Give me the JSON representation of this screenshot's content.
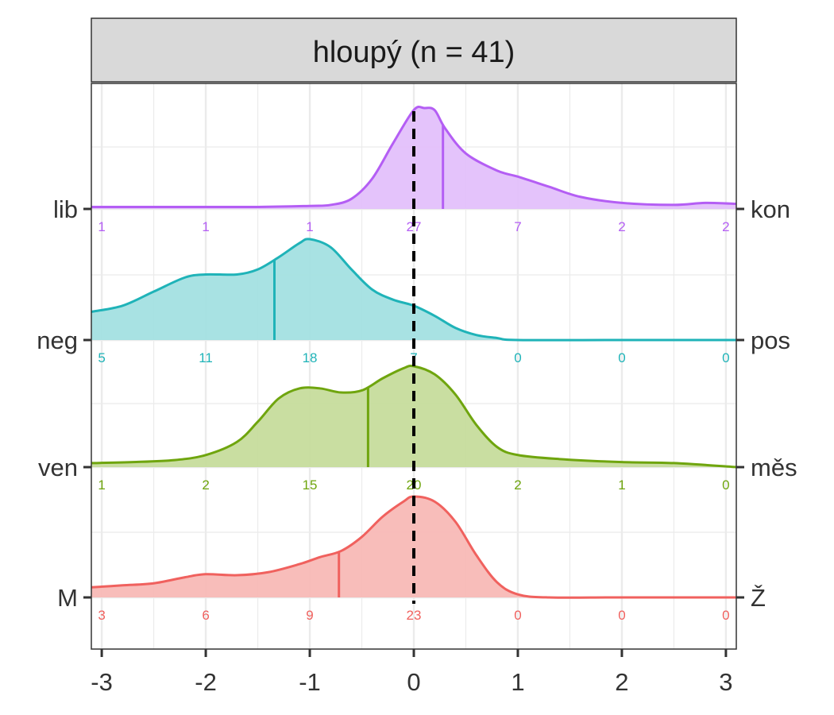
{
  "chart_data": {
    "type": "ridgeline-density",
    "title": "hloupý (n = 41)",
    "xlim": [
      -3.1,
      3.1
    ],
    "x_ticks": [
      -3,
      -2,
      -1,
      0,
      1,
      2,
      3
    ],
    "x_tick_labels": [
      "-3",
      "-2",
      "-1",
      "0",
      "1",
      "2",
      "3"
    ],
    "count_positions": [
      -3,
      -2,
      -1,
      0,
      1,
      2,
      3
    ],
    "reference_line_x": 0,
    "grid": true,
    "series": [
      {
        "left_label": "lib",
        "right_label": "kon",
        "color": "#B45EF4",
        "fill": "#E3C0FB",
        "mean": 0.28,
        "counts": [
          1,
          1,
          1,
          27,
          7,
          2,
          2
        ],
        "count_labels": [
          "1",
          "1",
          "1",
          "27",
          "7",
          "2",
          "2"
        ],
        "density": [
          [
            -3.1,
            0.02
          ],
          [
            -2.5,
            0.02
          ],
          [
            -2.0,
            0.02
          ],
          [
            -1.5,
            0.02
          ],
          [
            -1.0,
            0.03
          ],
          [
            -0.8,
            0.04
          ],
          [
            -0.6,
            0.1
          ],
          [
            -0.4,
            0.3
          ],
          [
            -0.2,
            0.65
          ],
          [
            0.0,
            0.98
          ],
          [
            0.1,
            1.0
          ],
          [
            0.2,
            0.98
          ],
          [
            0.3,
            0.8
          ],
          [
            0.5,
            0.55
          ],
          [
            0.8,
            0.38
          ],
          [
            1.0,
            0.32
          ],
          [
            1.3,
            0.22
          ],
          [
            1.6,
            0.12
          ],
          [
            2.0,
            0.06
          ],
          [
            2.5,
            0.04
          ],
          [
            2.8,
            0.06
          ],
          [
            3.1,
            0.05
          ]
        ]
      },
      {
        "left_label": "neg",
        "right_label": "pos",
        "color": "#1FB3B8",
        "fill": "#A3E0E1",
        "mean": -1.34,
        "counts": [
          5,
          11,
          18,
          7,
          0,
          0,
          0
        ],
        "count_labels": [
          "5",
          "11",
          "18",
          "7",
          "0",
          "0",
          "0"
        ],
        "density": [
          [
            -3.1,
            0.28
          ],
          [
            -2.8,
            0.34
          ],
          [
            -2.5,
            0.48
          ],
          [
            -2.2,
            0.62
          ],
          [
            -2.0,
            0.65
          ],
          [
            -1.7,
            0.65
          ],
          [
            -1.5,
            0.7
          ],
          [
            -1.3,
            0.82
          ],
          [
            -1.1,
            0.96
          ],
          [
            -1.0,
            1.0
          ],
          [
            -0.8,
            0.92
          ],
          [
            -0.6,
            0.7
          ],
          [
            -0.4,
            0.5
          ],
          [
            -0.2,
            0.4
          ],
          [
            0.0,
            0.34
          ],
          [
            0.2,
            0.24
          ],
          [
            0.4,
            0.12
          ],
          [
            0.6,
            0.05
          ],
          [
            0.8,
            0.02
          ],
          [
            1.0,
            0.0
          ],
          [
            2.0,
            0.0
          ],
          [
            3.1,
            0.0
          ]
        ]
      },
      {
        "left_label": "ven",
        "right_label": "měs",
        "color": "#6FA50E",
        "fill": "#C6DC9C",
        "mean": -0.44,
        "counts": [
          1,
          2,
          15,
          20,
          2,
          1,
          0
        ],
        "count_labels": [
          "1",
          "2",
          "15",
          "20",
          "2",
          "1",
          "0"
        ],
        "density": [
          [
            -3.1,
            0.04
          ],
          [
            -2.7,
            0.05
          ],
          [
            -2.3,
            0.07
          ],
          [
            -2.0,
            0.12
          ],
          [
            -1.7,
            0.25
          ],
          [
            -1.5,
            0.45
          ],
          [
            -1.3,
            0.68
          ],
          [
            -1.1,
            0.78
          ],
          [
            -0.9,
            0.78
          ],
          [
            -0.7,
            0.74
          ],
          [
            -0.5,
            0.76
          ],
          [
            -0.3,
            0.88
          ],
          [
            -0.1,
            0.98
          ],
          [
            0.0,
            1.0
          ],
          [
            0.2,
            0.92
          ],
          [
            0.4,
            0.72
          ],
          [
            0.6,
            0.42
          ],
          [
            0.8,
            0.2
          ],
          [
            1.0,
            0.12
          ],
          [
            1.4,
            0.08
          ],
          [
            2.0,
            0.05
          ],
          [
            2.5,
            0.04
          ],
          [
            3.1,
            0.0
          ]
        ]
      },
      {
        "left_label": "M",
        "right_label": "Ž",
        "color": "#F0615E",
        "fill": "#F8B9B6",
        "mean": -0.72,
        "counts": [
          3,
          6,
          9,
          23,
          0,
          0,
          0
        ],
        "count_labels": [
          "3",
          "6",
          "9",
          "23",
          "0",
          "0",
          "0"
        ],
        "density": [
          [
            -3.1,
            0.1
          ],
          [
            -2.8,
            0.12
          ],
          [
            -2.5,
            0.14
          ],
          [
            -2.2,
            0.2
          ],
          [
            -2.0,
            0.23
          ],
          [
            -1.7,
            0.22
          ],
          [
            -1.4,
            0.25
          ],
          [
            -1.1,
            0.33
          ],
          [
            -0.9,
            0.4
          ],
          [
            -0.7,
            0.46
          ],
          [
            -0.5,
            0.6
          ],
          [
            -0.3,
            0.8
          ],
          [
            -0.1,
            0.95
          ],
          [
            0.0,
            1.0
          ],
          [
            0.2,
            0.95
          ],
          [
            0.4,
            0.75
          ],
          [
            0.6,
            0.42
          ],
          [
            0.8,
            0.15
          ],
          [
            1.0,
            0.03
          ],
          [
            1.3,
            0.0
          ],
          [
            2.0,
            0.0
          ],
          [
            3.1,
            0.0
          ]
        ]
      }
    ]
  }
}
